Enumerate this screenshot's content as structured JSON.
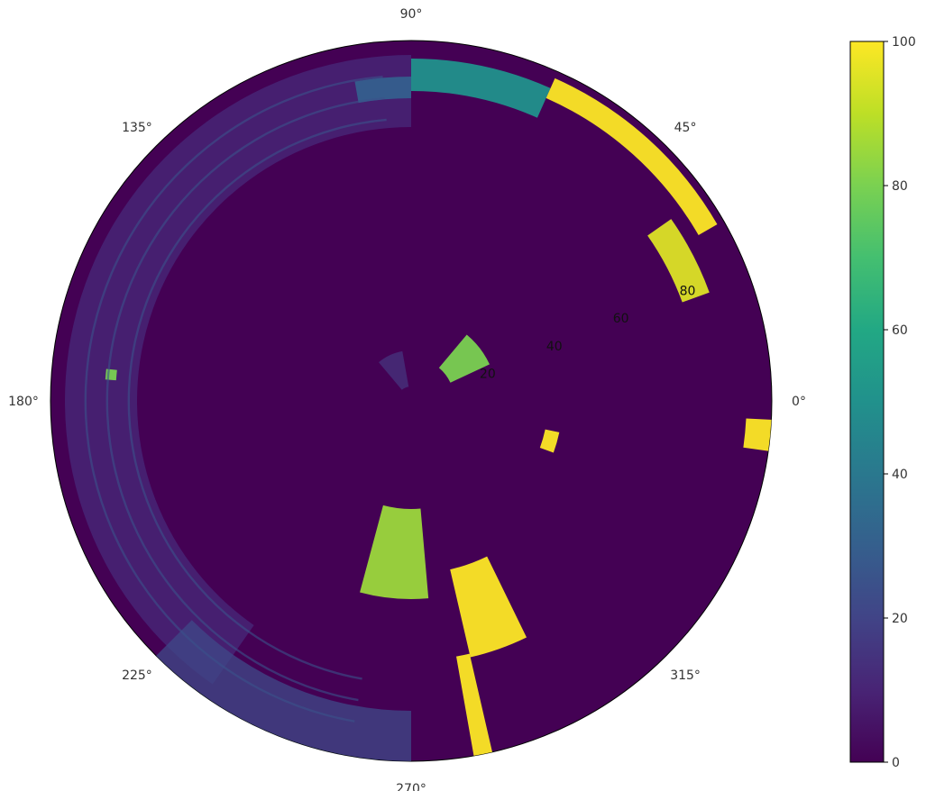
{
  "chart_data": {
    "type": "heatmap",
    "projection": "polar",
    "title": "",
    "angle_ticks": [
      "0°",
      "45°",
      "90°",
      "135°",
      "180°",
      "225°",
      "270°",
      "315°"
    ],
    "angle_tick_values": [
      0,
      45,
      90,
      135,
      180,
      225,
      270,
      315
    ],
    "radial_ticks": [
      "20",
      "40",
      "60",
      "80"
    ],
    "radial_tick_values": [
      20,
      40,
      60,
      80
    ],
    "radial_tick_angle_deg": 22.5,
    "rlim": [
      0,
      100
    ],
    "grid": false,
    "colormap": "viridis",
    "background_value": 0,
    "colorbar": {
      "ticks": [
        "0",
        "20",
        "40",
        "60",
        "80",
        "100"
      ],
      "tick_values": [
        0,
        20,
        40,
        60,
        80,
        100
      ],
      "range": [
        0,
        100
      ],
      "position": "right"
    },
    "bright_regions": [
      {
        "theta": [
          30,
          66
        ],
        "r": [
          92,
          98
        ],
        "value": 100
      },
      {
        "theta": [
          20,
          35
        ],
        "r": [
          80,
          88
        ],
        "value": 95
      },
      {
        "theta": [
          66,
          90
        ],
        "r": [
          86,
          95
        ],
        "value": 50
      },
      {
        "theta": [
          90,
          100
        ],
        "r": [
          84,
          90
        ],
        "value": 30
      },
      {
        "theta": [
          352,
          357
        ],
        "r": [
          93,
          100
        ],
        "value": 100
      },
      {
        "theta": [
          283,
          296
        ],
        "r": [
          48,
          73
        ],
        "value": 100
      },
      {
        "theta": [
          280,
          283
        ],
        "r": [
          72,
          102
        ],
        "value": 100
      },
      {
        "theta": [
          255,
          275
        ],
        "r": [
          30,
          55
        ],
        "value": 85
      },
      {
        "theta": [
          25,
          50
        ],
        "r": [
          12,
          24
        ],
        "value": 80
      },
      {
        "theta": [
          340,
          348
        ],
        "r": [
          38,
          42
        ],
        "value": 100
      },
      {
        "theta": [
          174,
          176
        ],
        "r": [
          82,
          85
        ],
        "value": 80
      },
      {
        "theta": [
          100,
          130
        ],
        "r": [
          4,
          14
        ],
        "value": 15
      },
      {
        "theta": [
          90,
          235
        ],
        "r": [
          76,
          96
        ],
        "value": 12
      },
      {
        "theta": [
          225,
          270
        ],
        "r": [
          86,
          100
        ],
        "value": 22
      }
    ]
  }
}
